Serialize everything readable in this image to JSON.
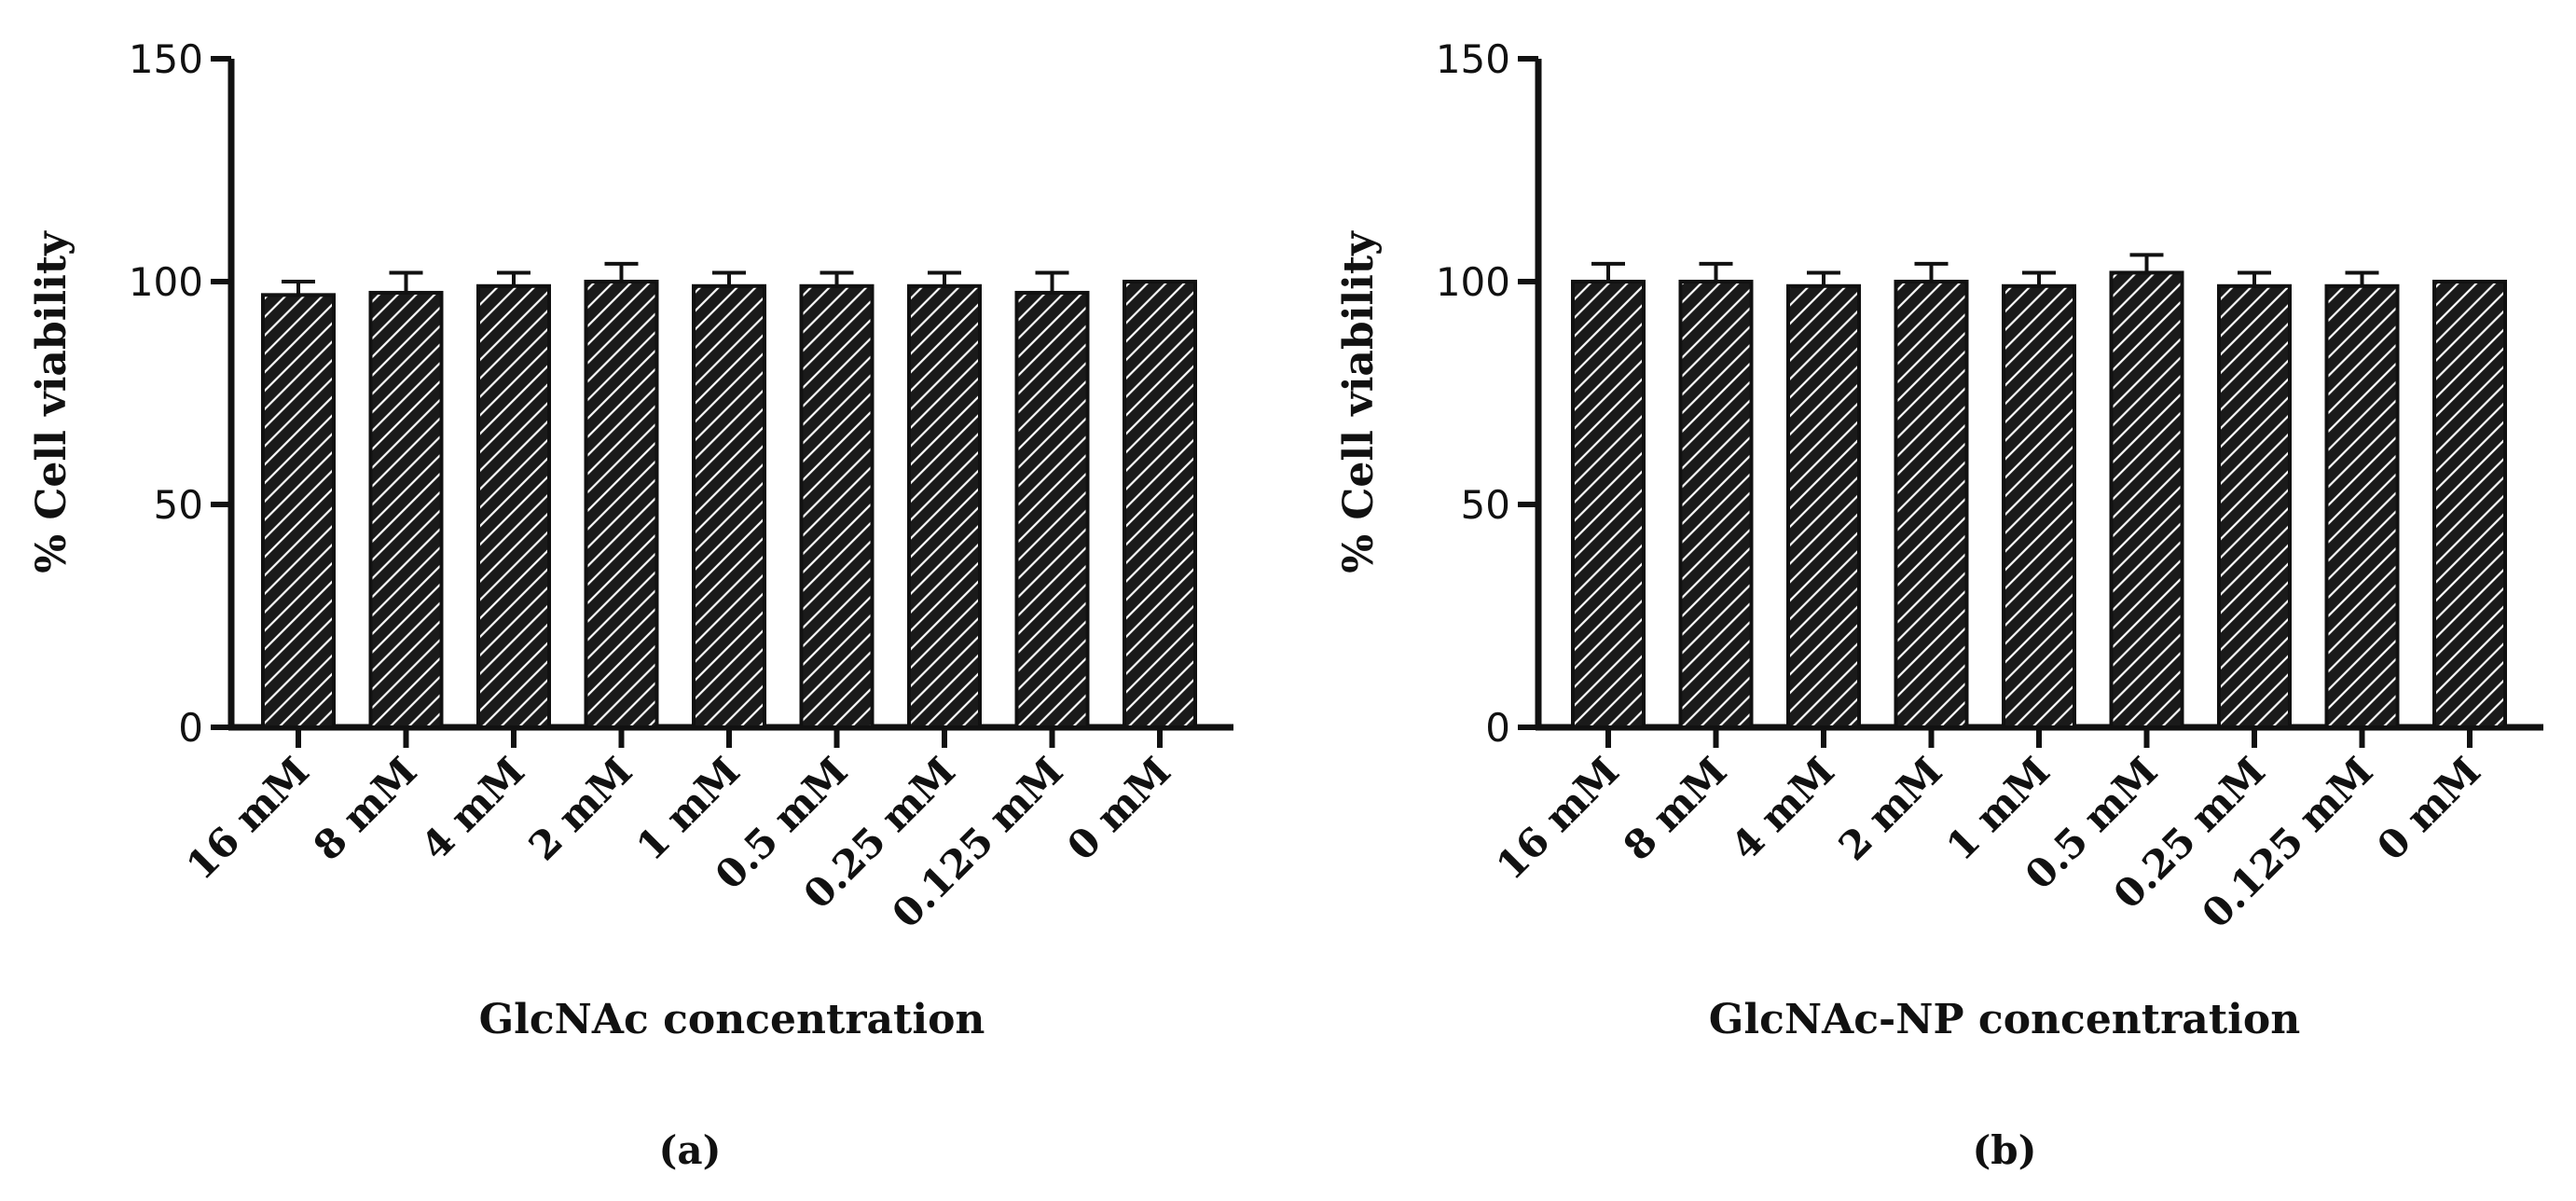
{
  "chart_data": [
    {
      "type": "bar",
      "panel_label": "(a)",
      "categories": [
        "16 mM",
        "8 mM",
        "4 mM",
        "2 mM",
        "1 mM",
        "0.5 mM",
        "0.25 mM",
        "0.125 mM",
        "0 mM"
      ],
      "values": [
        97,
        97.5,
        99,
        100,
        99,
        99,
        99,
        97.5,
        100
      ],
      "errors": [
        3,
        4.5,
        3,
        4,
        3,
        3,
        3,
        4.5,
        0
      ],
      "xlabel": "GlcNAc concentration",
      "ylabel": "% Cell viability",
      "ylim": [
        0,
        150
      ],
      "yticks": [
        0,
        50,
        100,
        150
      ],
      "bar_fill": "hatched",
      "bar_color": "#1a1a1a",
      "grid": false
    },
    {
      "type": "bar",
      "panel_label": "(b)",
      "categories": [
        "16 mM",
        "8 mM",
        "4 mM",
        "2 mM",
        "1 mM",
        "0.5 mM",
        "0.25 mM",
        "0.125 mM",
        "0 mM"
      ],
      "values": [
        100,
        100,
        99,
        100,
        99,
        102,
        99,
        99,
        100
      ],
      "errors": [
        4,
        4,
        3,
        4,
        3,
        4,
        3,
        3,
        0
      ],
      "xlabel": "GlcNAc-NP concentration",
      "ylabel": "% Cell viability",
      "ylim": [
        0,
        150
      ],
      "yticks": [
        0,
        50,
        100,
        150
      ],
      "bar_fill": "hatched",
      "bar_color": "#1a1a1a",
      "grid": false
    }
  ]
}
